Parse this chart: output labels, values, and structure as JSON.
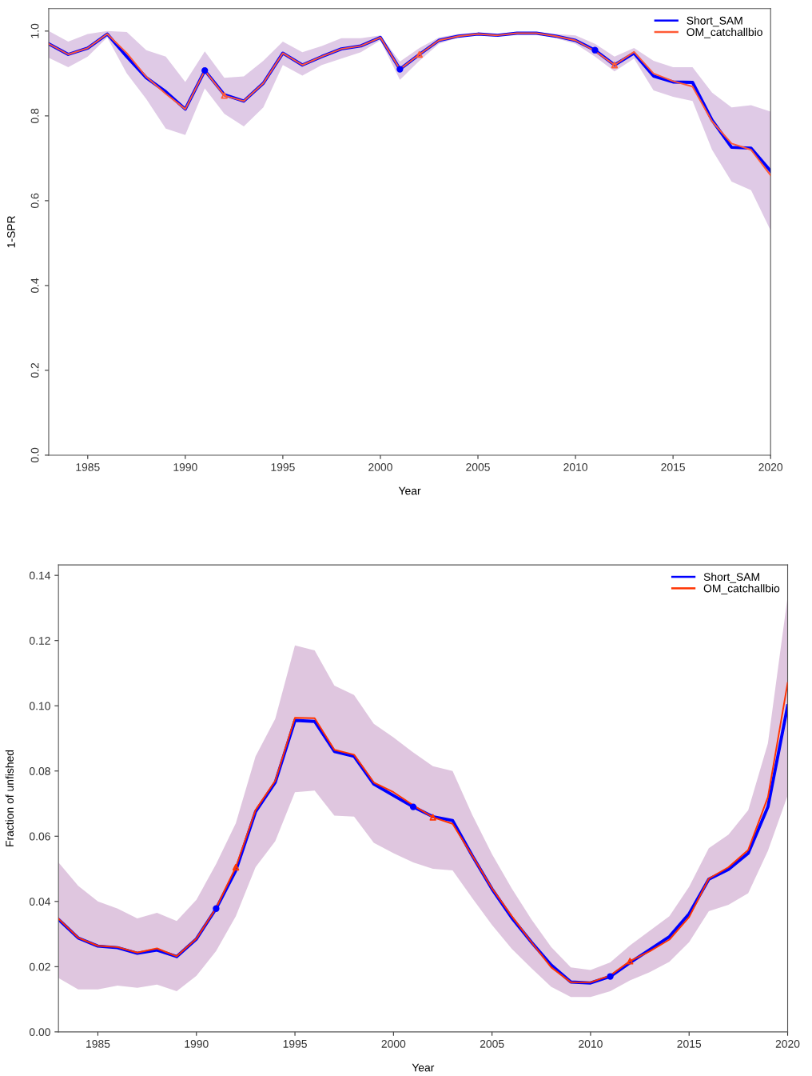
{
  "chart_data": [
    {
      "type": "line",
      "xlabel": "Year",
      "ylabel": "1-SPR",
      "xlim": [
        1983,
        2020
      ],
      "ylim": [
        0,
        1.053
      ],
      "xticks": [
        1985,
        1990,
        1995,
        2000,
        2005,
        2010,
        2015,
        2020
      ],
      "yticks": [
        {
          "value": 0,
          "label": "0.0"
        },
        {
          "value": 0.2,
          "label": "0.2"
        },
        {
          "value": 0.4,
          "label": "0.4"
        },
        {
          "value": 0.6,
          "label": "0.6"
        },
        {
          "value": 0.8,
          "label": "0.8"
        },
        {
          "value": 1.0,
          "label": "1.0"
        }
      ],
      "grid": false,
      "legend": "top right",
      "x": [
        1983,
        1984,
        1985,
        1986,
        1987,
        1988,
        1989,
        1990,
        1991,
        1992,
        1993,
        1994,
        1995,
        1996,
        1997,
        1998,
        1999,
        2000,
        2001,
        2002,
        2003,
        2004,
        2005,
        2006,
        2007,
        2008,
        2009,
        2010,
        2011,
        2012,
        2013,
        2014,
        2015,
        2016,
        2017,
        2018,
        2019,
        2020
      ],
      "series": [
        {
          "name": "Short_SAM",
          "color": "#0000ff",
          "values": [
            0.97,
            0.945,
            0.96,
            0.993,
            0.94,
            0.89,
            0.857,
            0.816,
            0.907,
            0.85,
            0.835,
            0.877,
            0.948,
            0.92,
            0.94,
            0.958,
            0.965,
            0.985,
            0.91,
            0.945,
            0.978,
            0.988,
            0.993,
            0.99,
            0.995,
            0.995,
            0.988,
            0.978,
            0.955,
            0.92,
            0.948,
            0.894,
            0.88,
            0.879,
            0.79,
            0.726,
            0.724,
            0.67
          ],
          "upper": [
            1.0,
            0.975,
            0.993,
            1.0,
            0.998,
            0.955,
            0.94,
            0.88,
            0.952,
            0.89,
            0.893,
            0.93,
            0.975,
            0.95,
            0.965,
            0.983,
            0.983,
            0.99,
            0.928,
            0.96,
            0.985,
            0.993,
            0.996,
            0.993,
            0.998,
            0.998,
            0.993,
            0.99,
            0.97,
            0.94,
            0.96,
            0.93,
            0.915,
            0.915,
            0.855,
            0.82,
            0.825,
            0.81
          ],
          "lower": [
            0.937,
            0.915,
            0.94,
            0.985,
            0.9,
            0.84,
            0.77,
            0.755,
            0.865,
            0.805,
            0.775,
            0.82,
            0.92,
            0.895,
            0.92,
            0.935,
            0.95,
            0.978,
            0.885,
            0.93,
            0.97,
            0.985,
            0.99,
            0.987,
            0.993,
            0.993,
            0.983,
            0.97,
            0.94,
            0.905,
            0.935,
            0.86,
            0.845,
            0.835,
            0.72,
            0.645,
            0.625,
            0.53
          ]
        },
        {
          "name": "OM_catchallbio",
          "color": "#ff5a36",
          "values": [
            0.97,
            0.945,
            0.96,
            0.993,
            0.948,
            0.892,
            0.852,
            0.816,
            0.907,
            0.848,
            0.835,
            0.877,
            0.948,
            0.92,
            0.94,
            0.958,
            0.965,
            0.985,
            0.91,
            0.945,
            0.978,
            0.988,
            0.993,
            0.99,
            0.995,
            0.995,
            0.988,
            0.978,
            0.953,
            0.92,
            0.951,
            0.9,
            0.882,
            0.869,
            0.787,
            0.735,
            0.72,
            0.66
          ]
        },
        {
          "type": "scatter",
          "color": "#0000ff",
          "marker": "circle",
          "x": [
            1991,
            2001,
            2011
          ],
          "values": [
            0.907,
            0.91,
            0.955
          ]
        },
        {
          "type": "scatter",
          "color": "#ff5a36",
          "marker": "triangle",
          "x": [
            1992,
            2002,
            2012
          ],
          "values": [
            0.848,
            0.945,
            0.92
          ]
        }
      ]
    },
    {
      "type": "line",
      "xlabel": "Year",
      "ylabel": "Fraction of unfished",
      "xlim": [
        1983,
        2020
      ],
      "ylim": [
        0,
        0.1432
      ],
      "xticks": [
        1985,
        1990,
        1995,
        2000,
        2005,
        2010,
        2015,
        2020
      ],
      "yticks": [
        {
          "value": 0,
          "label": "0.00"
        },
        {
          "value": 0.02,
          "label": "0.02"
        },
        {
          "value": 0.04,
          "label": "0.04"
        },
        {
          "value": 0.06,
          "label": "0.06"
        },
        {
          "value": 0.08,
          "label": "0.08"
        },
        {
          "value": 0.1,
          "label": "0.10"
        },
        {
          "value": 0.12,
          "label": "0.12"
        },
        {
          "value": 0.14,
          "label": "0.14"
        }
      ],
      "grid": false,
      "legend": "top right",
      "x": [
        1983,
        1984,
        1985,
        1986,
        1987,
        1988,
        1989,
        1990,
        1991,
        1992,
        1993,
        1994,
        1995,
        1996,
        1997,
        1998,
        1999,
        2000,
        2001,
        2002,
        2003,
        2004,
        2005,
        2006,
        2007,
        2008,
        2009,
        2010,
        2011,
        2012,
        2013,
        2014,
        2015,
        2016,
        2017,
        2018,
        2019,
        2020
      ],
      "series": [
        {
          "name": "Short_SAM",
          "color": "#0000ff",
          "values": [
            0.0345,
            0.0288,
            0.0263,
            0.0258,
            0.0241,
            0.0251,
            0.0231,
            0.0285,
            0.0378,
            0.0495,
            0.0675,
            0.0765,
            0.0955,
            0.0952,
            0.086,
            0.0845,
            0.076,
            0.0725,
            0.069,
            0.066,
            0.0648,
            0.054,
            0.0438,
            0.035,
            0.0275,
            0.0205,
            0.0153,
            0.015,
            0.017,
            0.0212,
            0.0252,
            0.0292,
            0.0362,
            0.0468,
            0.0498,
            0.0548,
            0.069,
            0.1
          ],
          "upper": [
            0.052,
            0.0448,
            0.04,
            0.0378,
            0.0348,
            0.0365,
            0.034,
            0.0405,
            0.0515,
            0.064,
            0.0845,
            0.096,
            0.1185,
            0.117,
            0.1062,
            0.1033,
            0.0945,
            0.0903,
            0.0857,
            0.0815,
            0.08,
            0.0665,
            0.0545,
            0.044,
            0.0345,
            0.026,
            0.0198,
            0.019,
            0.0213,
            0.0265,
            0.031,
            0.0355,
            0.0445,
            0.0563,
            0.0605,
            0.068,
            0.0885,
            0.1335
          ],
          "lower": [
            0.0165,
            0.013,
            0.013,
            0.0142,
            0.0135,
            0.0145,
            0.0125,
            0.0172,
            0.0248,
            0.0355,
            0.0505,
            0.0585,
            0.0735,
            0.074,
            0.0663,
            0.066,
            0.058,
            0.0548,
            0.052,
            0.05,
            0.0495,
            0.041,
            0.0328,
            0.0255,
            0.0195,
            0.0138,
            0.0107,
            0.0107,
            0.0125,
            0.0158,
            0.0183,
            0.0215,
            0.0275,
            0.037,
            0.039,
            0.0425,
            0.0555,
            0.0725
          ]
        },
        {
          "name": "OM_catchallbio",
          "color": "#ff3300",
          "values": [
            0.0347,
            0.0289,
            0.0264,
            0.026,
            0.0243,
            0.0256,
            0.0232,
            0.0286,
            0.038,
            0.0505,
            0.068,
            0.077,
            0.0963,
            0.0962,
            0.0865,
            0.085,
            0.0765,
            0.0735,
            0.0695,
            0.0658,
            0.0638,
            0.054,
            0.044,
            0.0355,
            0.0275,
            0.0198,
            0.0152,
            0.0152,
            0.0173,
            0.0217,
            0.0247,
            0.0283,
            0.0352,
            0.047,
            0.0505,
            0.0558,
            0.072,
            0.107
          ]
        },
        {
          "type": "scatter",
          "color": "#0000ff",
          "marker": "circle",
          "x": [
            1991,
            2001,
            2011
          ],
          "values": [
            0.0378,
            0.069,
            0.017
          ]
        },
        {
          "type": "scatter",
          "color": "#ff3300",
          "marker": "triangle",
          "x": [
            1992,
            2002,
            2012
          ],
          "values": [
            0.0505,
            0.0658,
            0.0217
          ]
        }
      ]
    }
  ]
}
